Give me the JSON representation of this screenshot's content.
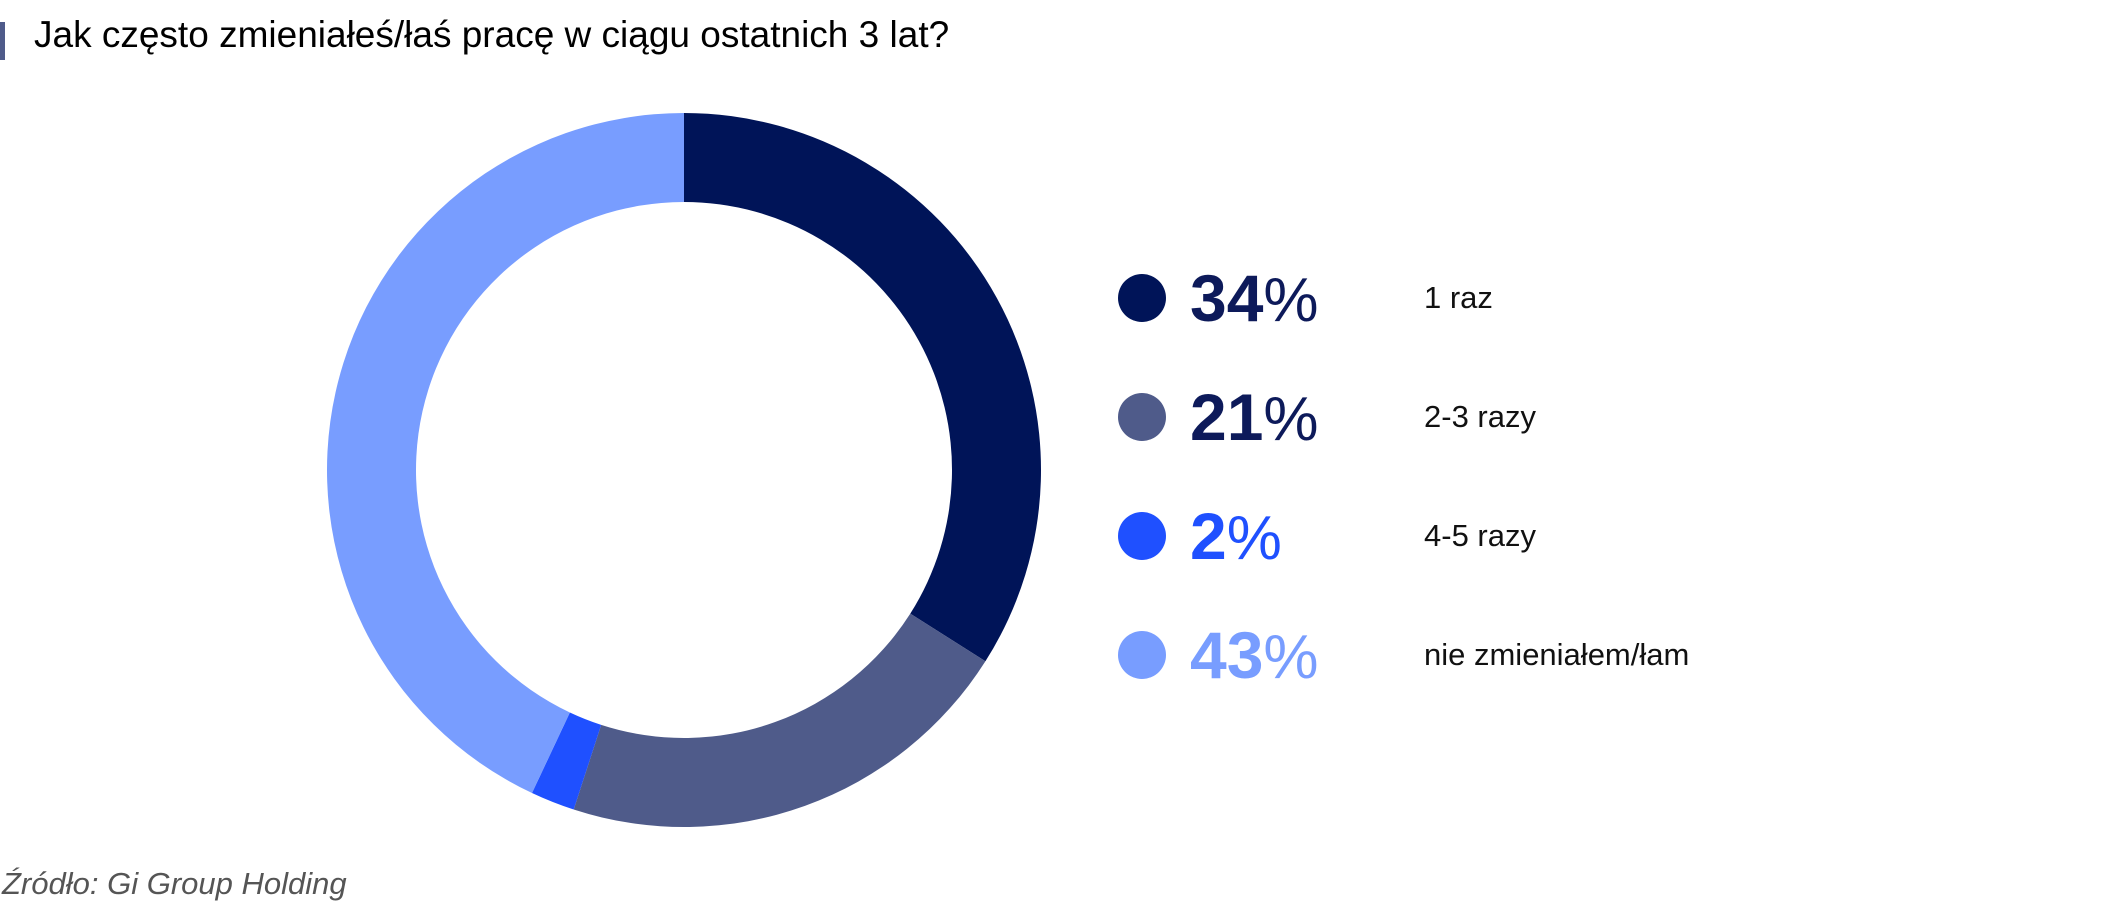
{
  "chart_data": {
    "type": "pie",
    "title": "Jak często zmieniałeś/łaś pracę w ciągu ostatnich 3 lat?",
    "donut": true,
    "slices": [
      {
        "label": "1 raz",
        "value": 34,
        "value_text": "34",
        "unit": "%",
        "color": "#001458",
        "text_color": "#0d1a5a"
      },
      {
        "label": "2-3 razy",
        "value": 21,
        "value_text": "21",
        "unit": "%",
        "color": "#4f5b8a",
        "text_color": "#0d1a5a"
      },
      {
        "label": "4-5 razy",
        "value": 2,
        "value_text": "2",
        "unit": "%",
        "color": "#1f50ff",
        "text_color": "#1f50ff"
      },
      {
        "label": "nie zmieniałem/łam",
        "value": 43,
        "value_text": "43",
        "unit": "%",
        "color": "#789dff",
        "text_color": "#789dff"
      }
    ],
    "legend_position": "right",
    "source": "Źródło: Gi Group Holding"
  }
}
